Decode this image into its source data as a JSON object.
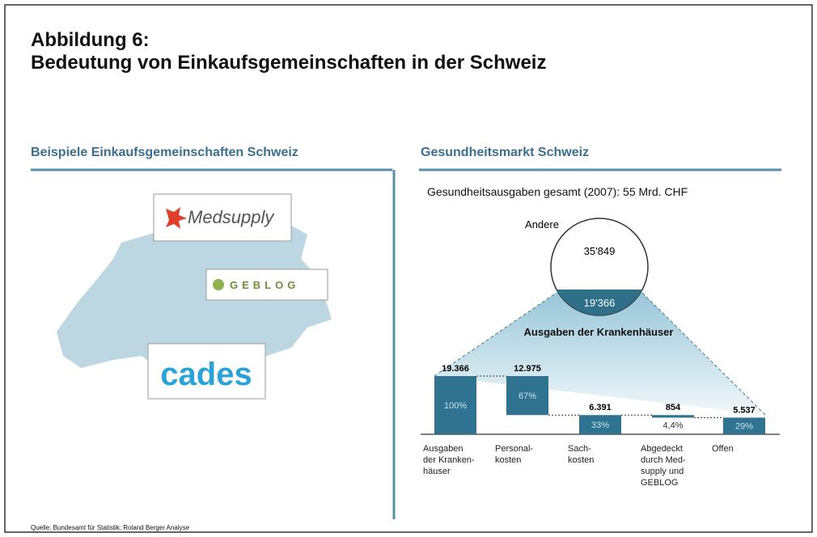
{
  "title_line1": "Abbildung 6:",
  "title_line2": "Bedeutung von Einkaufsgemeinschaften in der Schweiz",
  "left_panel": {
    "heading": "Beispiele Einkaufsgemeinschaften Schweiz",
    "logos": [
      "Medsupply",
      "GEBLOG",
      "cades"
    ]
  },
  "right_panel": {
    "heading": "Gesundheitsmarkt Schweiz",
    "subtitle": "Gesundheitsausgaben gesamt (2007): 55 Mrd. CHF",
    "circle": {
      "outer_label": "Andere",
      "outer_value": "35'849",
      "inner_value": "19'366"
    },
    "annotation": "Ausgaben der Krankenhäuser"
  },
  "chart_data": {
    "type": "waterfall",
    "categories": [
      "Ausgaben\nder Kranken-\nhäuser",
      "Personal-\nkosten",
      "Sach-\nkosten",
      "Abgedeckt\ndurch Med-\nsupply und\nGEBLOG",
      "Offen"
    ],
    "values": [
      19366,
      12975,
      6391,
      854,
      5537
    ],
    "value_labels": [
      "19.366",
      "12.975",
      "6.391",
      "854",
      "5.537"
    ],
    "steps": [
      "total",
      "decrease",
      "total",
      "decrease",
      "total"
    ],
    "share_labels": [
      "100%",
      "67%",
      "33%",
      "4,4%",
      "29%"
    ],
    "color": "#2f7390"
  },
  "source": "Quelle: Bundesamt für Statistik; Roland Berger Analyse"
}
